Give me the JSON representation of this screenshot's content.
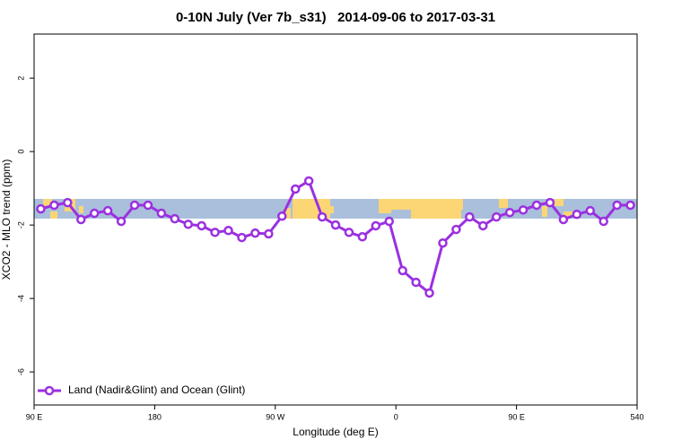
{
  "chart_data": {
    "type": "line",
    "title": "0-10N July (Ver 7b_s31)   2014-09-06 to 2017-03-31",
    "x_label": "Longitude (deg E)",
    "y_label": "XCO2 - MLO trend (ppm)",
    "x": [
      95,
      105,
      115,
      125,
      135,
      145,
      155,
      165,
      175,
      185,
      195,
      205,
      215,
      225,
      235,
      245,
      255,
      265,
      275,
      285,
      295,
      305,
      315,
      325,
      335,
      345,
      355,
      365,
      375,
      385,
      395,
      405,
      415,
      425,
      435,
      445,
      455,
      465,
      475,
      485,
      495,
      505,
      515,
      525,
      535
    ],
    "series": [
      {
        "name": "Land (Nadir&Glint) and Ocean (Glint)",
        "color": "#9b30e0",
        "values": [
          -1.56,
          -1.46,
          -1.39,
          -1.85,
          -1.68,
          -1.61,
          -1.9,
          -1.46,
          -1.46,
          -1.68,
          -1.83,
          -1.98,
          -2.02,
          -2.2,
          -2.15,
          -2.34,
          -2.22,
          -2.24,
          -1.76,
          -1.02,
          -0.8,
          -1.78,
          -2.0,
          -2.2,
          -2.32,
          -2.02,
          -1.9,
          -3.24,
          -3.56,
          -3.85,
          -2.49,
          -2.12,
          -1.78,
          -2.02,
          -1.78,
          -1.66,
          -1.59,
          -1.46,
          -1.39,
          -1.85,
          -1.71,
          -1.61,
          -1.9,
          -1.46,
          -1.46
        ]
      }
    ],
    "xlim": [
      90,
      540
    ],
    "xticks": [
      {
        "value": 90,
        "label": "90 E"
      },
      180,
      {
        "value": 270,
        "label": "90 W"
      },
      {
        "value": 360,
        "label": "0"
      },
      {
        "value": 450,
        "label": "90 E"
      },
      540
    ],
    "ylim": [
      -6.9,
      3.2
    ],
    "yticks": [
      -6,
      -4,
      -2,
      0,
      2
    ],
    "legend": "bottom-left"
  }
}
